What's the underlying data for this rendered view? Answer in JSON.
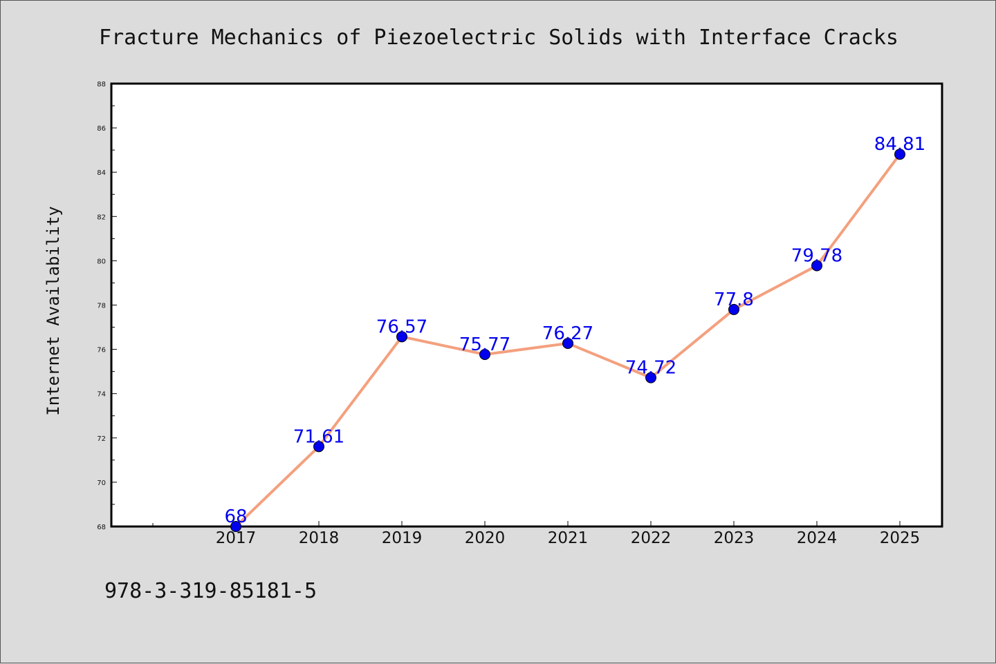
{
  "chart_data": {
    "type": "line",
    "title": "Fracture Mechanics of Piezoelectric Solids with Interface Cracks",
    "xlabel": "",
    "ylabel": "Internet Availability",
    "categories": [
      "2017",
      "2018",
      "2019",
      "2020",
      "2021",
      "2022",
      "2023",
      "2024",
      "2025"
    ],
    "series": [
      {
        "values": [
          68,
          71.61,
          76.57,
          75.77,
          76.27,
          74.72,
          77.8,
          79.78,
          84.81
        ],
        "labels": [
          "68",
          "71.61",
          "76.57",
          "75.77",
          "76.27",
          "74.72",
          "77.8",
          "79.78",
          "84.81"
        ],
        "line_color": "#f4a07e",
        "marker_color": "#0000ee",
        "label_color": "#0000ee"
      }
    ],
    "ylim": [
      68,
      88
    ],
    "yticks": [
      "68",
      "70",
      "72",
      "74",
      "76",
      "78",
      "80",
      "82",
      "84",
      "86",
      "88"
    ],
    "grid": false,
    "legend": "none"
  },
  "footer": {
    "text": "978-3-319-85181-5"
  }
}
